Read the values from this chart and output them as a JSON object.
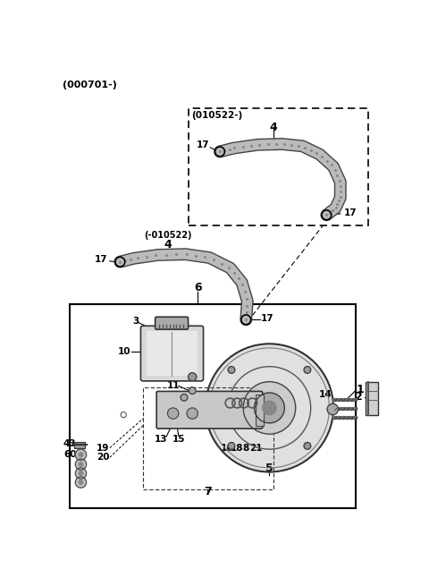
{
  "header_label": "(000701-)",
  "dashed_box_label": "(010522-)",
  "below_dashed_label": "(-010522)",
  "bg_color": "#ffffff",
  "line_color": "#000000",
  "figsize": [
    4.8,
    6.55
  ],
  "dpi": 100
}
